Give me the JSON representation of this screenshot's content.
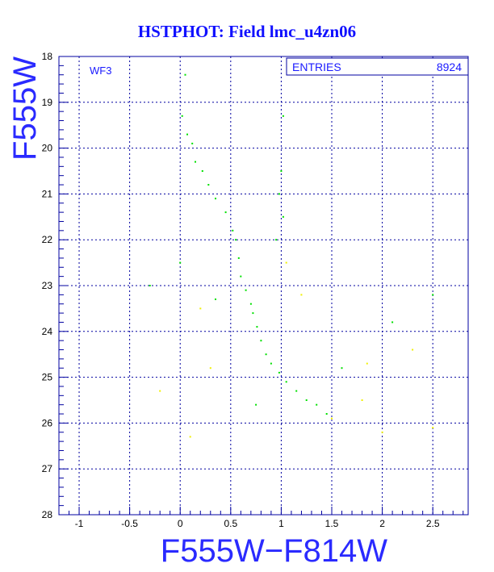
{
  "chart_data": {
    "type": "scatter",
    "title": "HSTPHOT: Field lmc_u4zn06",
    "panel_label": "WF3",
    "stats": {
      "label": "ENTRIES",
      "value": "8924"
    },
    "xlabel": "F555W−F814W",
    "ylabel": "F555W",
    "xlim": [
      -1.2,
      2.85
    ],
    "ylim": [
      28,
      18
    ],
    "y_inverted": true,
    "x_ticks": [
      "-1",
      "-0.5",
      "0",
      "0.5",
      "1",
      "1.5",
      "2",
      "2.5"
    ],
    "y_ticks": [
      "18",
      "19",
      "20",
      "21",
      "22",
      "23",
      "24",
      "25",
      "26",
      "27",
      "28"
    ],
    "grid": true,
    "colors": {
      "background": "#ffffff",
      "frame": "#0000a0",
      "grid": "#0000a0",
      "main": "#00e000",
      "secondary": "#f0f000",
      "text": "#1a1aff"
    },
    "series": [
      {
        "color": "#00e000",
        "points": [
          [
            0.05,
            18.4
          ],
          [
            0.02,
            19.3
          ],
          [
            0.07,
            19.7
          ],
          [
            0.12,
            19.9
          ],
          [
            0.15,
            20.3
          ],
          [
            0.22,
            20.5
          ],
          [
            0.28,
            20.8
          ],
          [
            0.35,
            21.1
          ],
          [
            0.45,
            21.4
          ],
          [
            0.52,
            21.8
          ],
          [
            0.55,
            22.0
          ],
          [
            0.58,
            22.4
          ],
          [
            0.6,
            22.8
          ],
          [
            0.65,
            23.1
          ],
          [
            0.7,
            23.4
          ],
          [
            0.72,
            23.6
          ],
          [
            0.76,
            23.9
          ],
          [
            0.8,
            24.2
          ],
          [
            0.85,
            24.5
          ],
          [
            0.9,
            24.7
          ],
          [
            0.98,
            24.9
          ],
          [
            1.05,
            25.1
          ],
          [
            1.15,
            25.3
          ],
          [
            1.25,
            25.5
          ],
          [
            1.35,
            25.6
          ],
          [
            1.45,
            25.8
          ],
          [
            1.02,
            19.3
          ],
          [
            1.0,
            20.5
          ],
          [
            0.98,
            21.0
          ],
          [
            1.02,
            21.5
          ],
          [
            0.95,
            22.0
          ],
          [
            0.35,
            23.3
          ],
          [
            0.75,
            25.6
          ],
          [
            1.6,
            24.8
          ],
          [
            2.1,
            23.8
          ],
          [
            2.5,
            23.2
          ],
          [
            0.0,
            22.5
          ],
          [
            -0.3,
            23.0
          ]
        ]
      },
      {
        "color": "#f0f000",
        "points": [
          [
            1.5,
            25.9
          ],
          [
            1.8,
            25.5
          ],
          [
            2.0,
            26.2
          ],
          [
            2.3,
            24.4
          ],
          [
            0.2,
            23.5
          ],
          [
            -0.2,
            25.3
          ],
          [
            0.3,
            24.8
          ],
          [
            1.2,
            23.2
          ],
          [
            1.85,
            24.7
          ],
          [
            2.5,
            26.1
          ],
          [
            0.1,
            26.3
          ],
          [
            1.05,
            22.5
          ]
        ]
      }
    ]
  }
}
